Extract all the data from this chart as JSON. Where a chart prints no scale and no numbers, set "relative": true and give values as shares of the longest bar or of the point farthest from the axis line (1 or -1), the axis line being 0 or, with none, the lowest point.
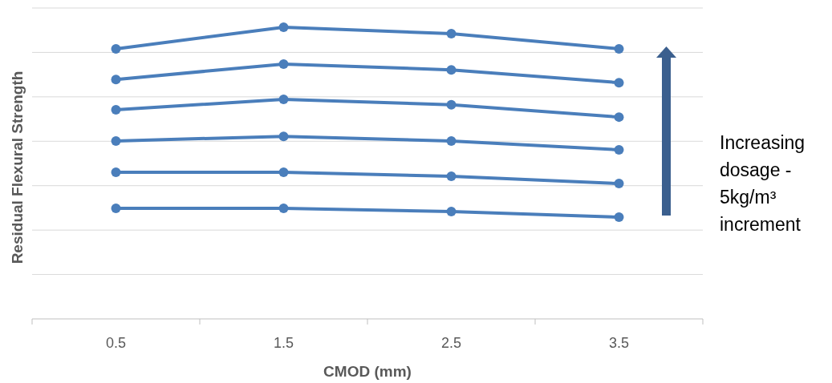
{
  "chart_data": {
    "type": "line",
    "xlabel": "CMOD (mm)",
    "ylabel": "Residual Flexural Strength",
    "categories": [
      "0.5",
      "1.5",
      "2.5",
      "3.5"
    ],
    "relative": true,
    "grid": "y",
    "marker": "circle",
    "line_style": "solid",
    "series": [
      {
        "color": "#4a7ebb",
        "values": [
          0.379,
          0.379,
          0.368,
          0.349
        ]
      },
      {
        "color": "#4a7ebb",
        "values": [
          0.503,
          0.503,
          0.489,
          0.464
        ]
      },
      {
        "color": "#4a7ebb",
        "values": [
          0.61,
          0.626,
          0.61,
          0.58
        ]
      },
      {
        "color": "#4a7ebb",
        "values": [
          0.717,
          0.753,
          0.734,
          0.692
        ]
      },
      {
        "color": "#4a7ebb",
        "values": [
          0.821,
          0.874,
          0.854,
          0.81
        ]
      },
      {
        "color": "#4a7ebb",
        "values": [
          0.926,
          1,
          0.978,
          0.926
        ]
      }
    ],
    "annotations": [
      "Increasing dosage - 5kg/m³ increment"
    ]
  }
}
